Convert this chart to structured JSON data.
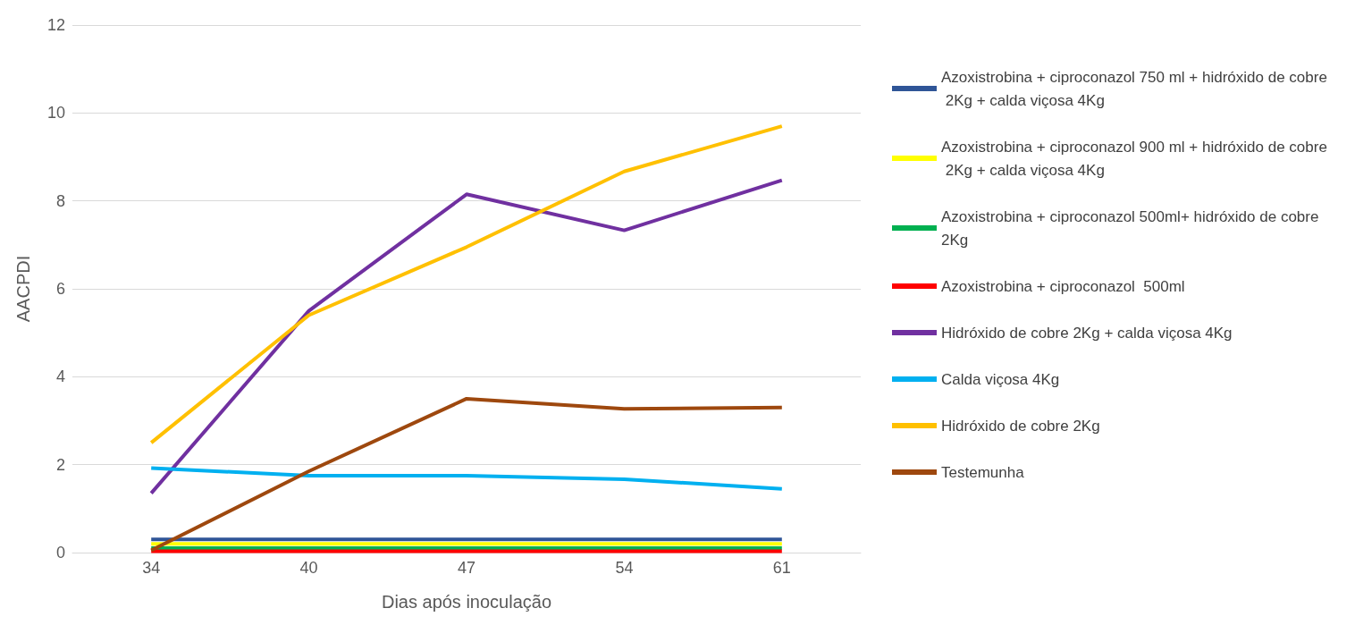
{
  "chart_data": {
    "type": "line",
    "xlabel": "Dias após inoculação",
    "ylabel": "AACPDI",
    "categories": [
      "34",
      "40",
      "47",
      "54",
      "61"
    ],
    "ylim": [
      0,
      12
    ],
    "yticks": [
      0,
      2,
      4,
      6,
      8,
      10,
      12
    ],
    "grid": "y",
    "legend": "right",
    "marker": "none",
    "line_style": "solid",
    "series": [
      {
        "name": "Azoxistrobina + ciproconazol 750 ml + hidróxido de cobre 2Kg + calda viçosa 4Kg",
        "color": "#2f5597",
        "values": [
          0.3,
          0.3,
          0.3,
          0.3,
          0.3
        ]
      },
      {
        "name": "Azoxistrobina + ciproconazol 900 ml + hidróxido de cobre 2Kg + calda viçosa 4Kg",
        "color": "#ffff00",
        "values": [
          0.2,
          0.2,
          0.2,
          0.2,
          0.2
        ]
      },
      {
        "name": "Azoxistrobina + ciproconazol 500ml+ hidróxido de cobre 2Kg",
        "color": "#00b050",
        "values": [
          0.1,
          0.1,
          0.1,
          0.1,
          0.1
        ]
      },
      {
        "name": "Azoxistrobina + ciproconazol  500ml",
        "color": "#ff0000",
        "values": [
          0.03,
          0.03,
          0.03,
          0.03,
          0.03
        ]
      },
      {
        "name": "Hidróxido de cobre 2Kg + calda viçosa 4Kg",
        "color": "#7030a0",
        "values": [
          1.35,
          5.5,
          8.15,
          7.33,
          8.47
        ]
      },
      {
        "name": "Calda viçosa 4Kg",
        "color": "#00b0f0",
        "values": [
          1.92,
          1.75,
          1.75,
          1.67,
          1.45
        ]
      },
      {
        "name": "Hidróxido de cobre 2Kg",
        "color": "#ffc000",
        "values": [
          2.5,
          5.4,
          6.95,
          8.67,
          9.7
        ]
      },
      {
        "name": "Testemunha",
        "color": "#9e480e",
        "values": [
          0.05,
          1.85,
          3.5,
          3.27,
          3.3
        ]
      }
    ]
  }
}
